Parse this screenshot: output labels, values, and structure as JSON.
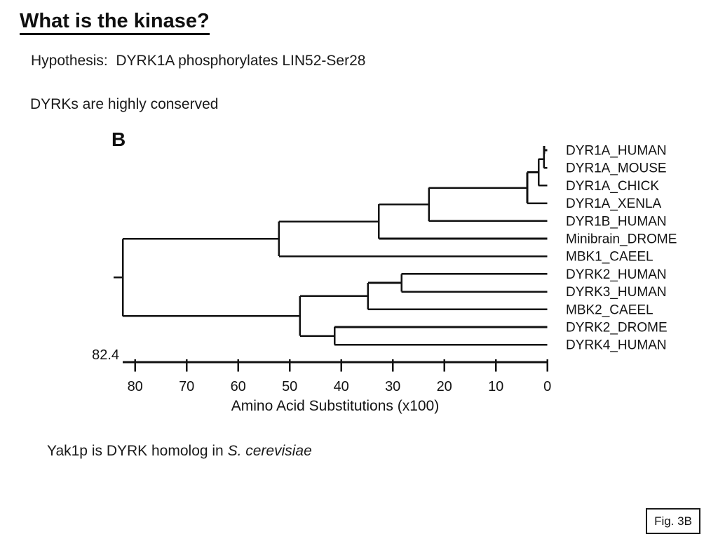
{
  "slide": {
    "title": "What is the kinase?",
    "hypothesis": "Hypothesis:  DYRK1A phosphorylates LIN52-Ser28",
    "conserved": "DYRKs are highly conserved",
    "note_prefix": "Yak1p is DYRK homolog in ",
    "note_species": "S. cerevisiae",
    "fig_label": "Fig. 3B"
  },
  "chart_data": {
    "type": "dendrogram",
    "panel_label": "B",
    "xlabel": "Amino Acid Substitutions (x100)",
    "axis": {
      "ticks": [
        80,
        70,
        60,
        50,
        40,
        30,
        20,
        10,
        0
      ],
      "direction": "values decrease left-to-right, 0 at leaf tips",
      "root_value": 82.4,
      "root_value_label": "82.4"
    },
    "leaves": [
      "DYR1A_HUMAN",
      "DYR1A_MOUSE",
      "DYR1A_CHICK",
      "DYR1A_XENLA",
      "DYR1B_HUMAN",
      "Minibrain_DROME",
      "MBK1_CAEEL",
      "DYRK2_HUMAN",
      "DYRK3_HUMAN",
      "MBK2_CAEEL",
      "DYRK2_DROME",
      "DYRK4_HUMAN"
    ],
    "tree": {
      "h": 82.4,
      "c": [
        {
          "h": 52.1,
          "c": [
            {
              "h": 32.7,
              "c": [
                {
                  "h": 23.0,
                  "c": [
                    {
                      "h": 3.9,
                      "c": [
                        {
                          "h": 1.7,
                          "c": [
                            {
                              "h": 0.7,
                              "c": [
                                {
                                  "leaf": "DYR1A_HUMAN",
                                  "tip_tick": true
                                },
                                {
                                  "leaf": "DYR1A_MOUSE"
                                }
                              ]
                            },
                            {
                              "leaf": "DYR1A_CHICK"
                            }
                          ]
                        },
                        {
                          "leaf": "DYR1A_XENLA"
                        }
                      ]
                    },
                    {
                      "leaf": "DYR1B_HUMAN"
                    }
                  ]
                },
                {
                  "leaf": "Minibrain_DROME"
                }
              ]
            },
            {
              "leaf": "MBK1_CAEEL"
            }
          ]
        },
        {
          "h": 48.0,
          "c": [
            {
              "h": 34.8,
              "c": [
                {
                  "h": 28.3,
                  "c": [
                    {
                      "leaf": "DYRK2_HUMAN"
                    },
                    {
                      "leaf": "DYRK3_HUMAN"
                    }
                  ]
                },
                {
                  "leaf": "MBK2_CAEEL"
                }
              ]
            },
            {
              "h": 41.3,
              "c": [
                {
                  "leaf": "DYRK2_DROME"
                },
                {
                  "leaf": "DYRK4_HUMAN"
                }
              ]
            }
          ]
        }
      ]
    },
    "ink_color": "#121212"
  }
}
